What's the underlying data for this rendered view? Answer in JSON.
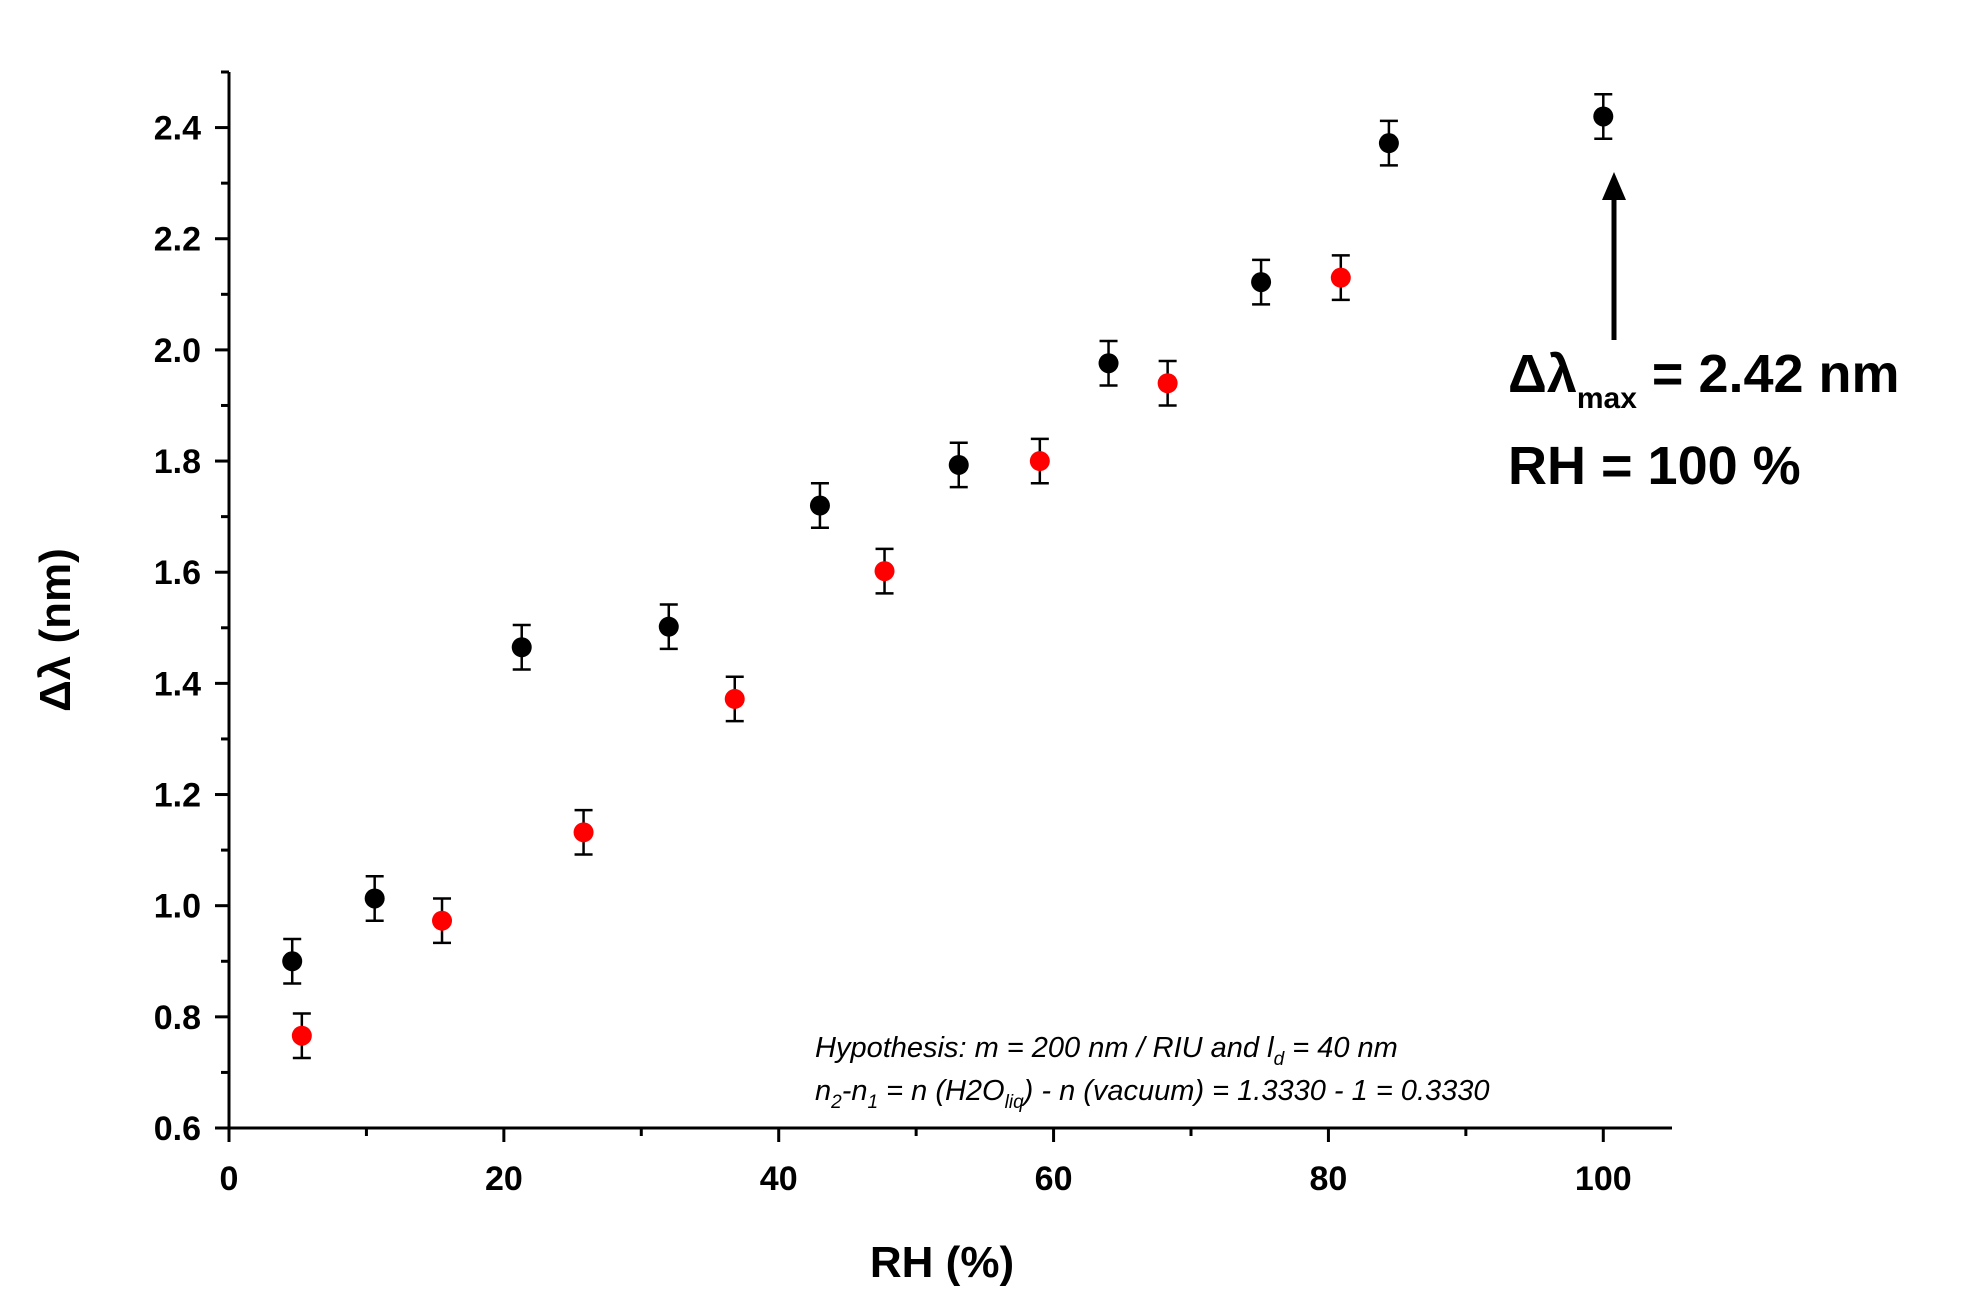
{
  "chart_data": {
    "type": "scatter",
    "xlabel": "RH (%)",
    "ylabel": "Δλ (nm)",
    "xlim": [
      0,
      105
    ],
    "ylim": [
      0.6,
      2.5
    ],
    "x_ticks": [
      0,
      20,
      40,
      60,
      80,
      100
    ],
    "y_ticks": [
      0.6,
      0.8,
      1.0,
      1.2,
      1.4,
      1.6,
      1.8,
      2.0,
      2.2,
      2.4
    ],
    "x_tick_labels": [
      "0",
      "20",
      "40",
      "60",
      "80",
      "100"
    ],
    "y_tick_labels": [
      "0.6",
      "0.8",
      "1.0",
      "1.2",
      "1.4",
      "1.6",
      "1.8",
      "2.0",
      "2.2",
      "2.4"
    ],
    "error_bar": 0.04,
    "grid": false,
    "series": [
      {
        "color": "#000000",
        "points": [
          {
            "x": 4.6,
            "y": 0.9
          },
          {
            "x": 10.6,
            "y": 1.013
          },
          {
            "x": 21.3,
            "y": 1.465
          },
          {
            "x": 32.0,
            "y": 1.502
          },
          {
            "x": 43.0,
            "y": 1.72
          },
          {
            "x": 53.1,
            "y": 1.793
          },
          {
            "x": 64.0,
            "y": 1.976
          },
          {
            "x": 75.1,
            "y": 2.122
          },
          {
            "x": 84.4,
            "y": 2.372
          },
          {
            "x": 100.0,
            "y": 2.42
          }
        ]
      },
      {
        "color": "#ff0000",
        "points": [
          {
            "x": 5.3,
            "y": 0.766
          },
          {
            "x": 15.5,
            "y": 0.973
          },
          {
            "x": 25.8,
            "y": 1.132
          },
          {
            "x": 36.8,
            "y": 1.372
          },
          {
            "x": 47.7,
            "y": 1.602
          },
          {
            "x": 59.0,
            "y": 1.8
          },
          {
            "x": 68.3,
            "y": 1.94
          },
          {
            "x": 80.9,
            "y": 2.13
          }
        ]
      }
    ],
    "annotations": {
      "callout_line1_prefix": "Δλ",
      "callout_line1_sub": "max",
      "callout_line1_suffix": " = 2.42 nm",
      "callout_line2": "RH = 100 %",
      "hypothesis_line1_a": "Hypothesis: m = 200 nm / RIU and l",
      "hypothesis_line1_sub": "d",
      "hypothesis_line1_b": " = 40 nm",
      "hypothesis_line2_a": "n",
      "hypothesis_line2_sub1": "2",
      "hypothesis_line2_b": "-n",
      "hypothesis_line2_sub2": "1",
      "hypothesis_line2_c": " = n (H2O",
      "hypothesis_line2_sub3": "liq",
      "hypothesis_line2_d": ") - n (vacuum) = 1.3330 - 1 = 0.3330"
    }
  }
}
